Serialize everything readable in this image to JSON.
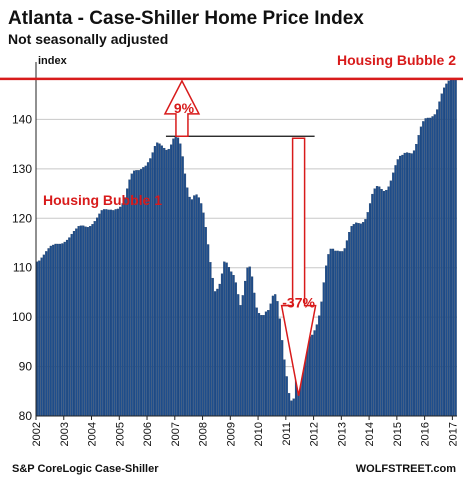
{
  "chart_data": {
    "type": "bar",
    "title": "Atlanta - Case-Shiller Home Price Index",
    "subtitle": "Not seasonally adjusted",
    "ylabel": "index",
    "ylim": [
      80,
      150
    ],
    "yticks": [
      80,
      90,
      100,
      110,
      120,
      130,
      140
    ],
    "grid": true,
    "xticks": [
      "2002",
      "2003",
      "2004",
      "2005",
      "2006",
      "2007",
      "2008",
      "2009",
      "2010",
      "2011",
      "2012",
      "2013",
      "2014",
      "2015",
      "2016",
      "2017",
      "2018"
    ],
    "series_color": "#1f4e8c",
    "accent_color": "#d81b1b",
    "values": [
      111.2,
      111.4,
      112.0,
      112.6,
      113.3,
      113.9,
      114.4,
      114.6,
      114.8,
      114.8,
      114.8,
      114.9,
      115.2,
      115.6,
      116.1,
      116.8,
      117.4,
      117.9,
      118.4,
      118.5,
      118.5,
      118.3,
      118.2,
      118.4,
      118.8,
      119.4,
      120.1,
      120.9,
      121.6,
      121.8,
      121.8,
      121.7,
      121.7,
      121.6,
      121.8,
      121.9,
      122.3,
      123.0,
      124.2,
      126.0,
      127.8,
      129.0,
      129.6,
      129.7,
      129.7,
      129.9,
      130.3,
      130.6,
      131.3,
      132.1,
      133.3,
      134.6,
      135.3,
      135.1,
      134.7,
      134.2,
      133.8,
      134.0,
      134.9,
      136.1,
      136.6,
      136.3,
      135.1,
      132.5,
      129.0,
      126.2,
      124.3,
      123.8,
      124.6,
      124.8,
      124.2,
      123.0,
      121.1,
      118.2,
      114.7,
      111.1,
      107.9,
      105.2,
      105.7,
      106.7,
      108.8,
      111.2,
      111.0,
      110.1,
      109.2,
      108.5,
      107.0,
      104.6,
      102.4,
      104.4,
      107.3,
      110.0,
      110.2,
      108.2,
      104.9,
      101.9,
      100.8,
      100.4,
      100.4,
      101.1,
      101.4,
      102.7,
      104.3,
      104.6,
      103.2,
      99.7,
      95.3,
      91.4,
      88.0,
      84.6,
      83.1,
      83.5,
      87.5,
      92.0,
      94.6,
      95.7,
      96.2,
      96.2,
      96.1,
      96.4,
      97.3,
      98.5,
      100.3,
      103.1,
      107.0,
      110.4,
      112.7,
      113.8,
      113.8,
      113.4,
      113.4,
      113.3,
      113.3,
      113.9,
      115.5,
      117.2,
      118.4,
      118.8,
      119.1,
      119.0,
      118.9,
      119.2,
      119.8,
      121.2,
      123.0,
      124.9,
      126.0,
      126.5,
      126.4,
      125.9,
      125.5,
      125.7,
      126.4,
      127.6,
      129.2,
      130.7,
      131.9,
      132.6,
      132.8,
      133.2,
      133.3,
      133.2,
      133.1,
      133.7,
      135.0,
      136.8,
      138.5,
      139.6,
      140.2,
      140.3,
      140.3,
      140.6,
      141.0,
      142.0,
      143.6,
      145.2,
      146.4,
      147.2,
      147.8,
      148.2,
      148.2,
      148.0
    ],
    "annotations": {
      "bubble1": "Housing Bubble 1",
      "bubble2": "Housing Bubble 2",
      "rise_pct": "9%",
      "drop_pct": "-37%"
    }
  },
  "footer": {
    "source": "S&P CoreLogic Case-Shiller",
    "brand": "WOLFSTREET.com"
  }
}
